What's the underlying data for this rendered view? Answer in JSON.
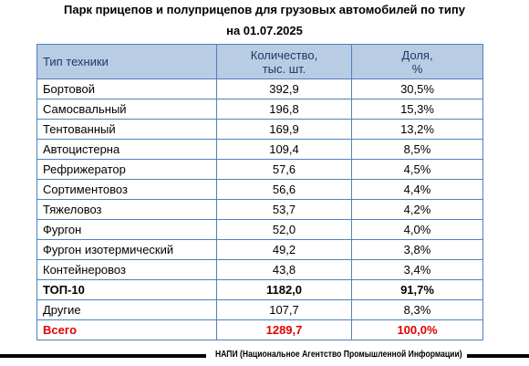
{
  "header": {
    "title": "Парк прицепов и полуприцепов для грузовых автомобилей по типу",
    "subtitle": "на 01.07.2025"
  },
  "table": {
    "columns": [
      "Тип техники",
      "Количество,\nтыс. шт.",
      "Доля,\n%"
    ],
    "rows": [
      [
        "Бортовой",
        "392,9",
        "30,5%"
      ],
      [
        "Самосвальный",
        "196,8",
        "15,3%"
      ],
      [
        "Тентованный",
        "169,9",
        "13,2%"
      ],
      [
        "Автоцистерна",
        "109,4",
        "8,5%"
      ],
      [
        "Рефрижератор",
        "57,6",
        "4,5%"
      ],
      [
        "Сортиментовоз",
        "56,6",
        "4,4%"
      ],
      [
        "Тяжеловоз",
        "53,7",
        "4,2%"
      ],
      [
        "Фургон",
        "52,0",
        "4,0%"
      ],
      [
        "Фургон изотермический",
        "49,2",
        "3,8%"
      ],
      [
        "Контейнеровоз",
        "43,8",
        "3,4%"
      ],
      [
        "ТОП-10",
        "1182,0",
        "91,7%"
      ],
      [
        "Другие",
        "107,7",
        "8,3%"
      ],
      [
        "Всего",
        "1289,7",
        "100,0%"
      ]
    ]
  },
  "footer": {
    "source": "НАПИ (Национальное Агентство Промышленной Информации)"
  }
}
